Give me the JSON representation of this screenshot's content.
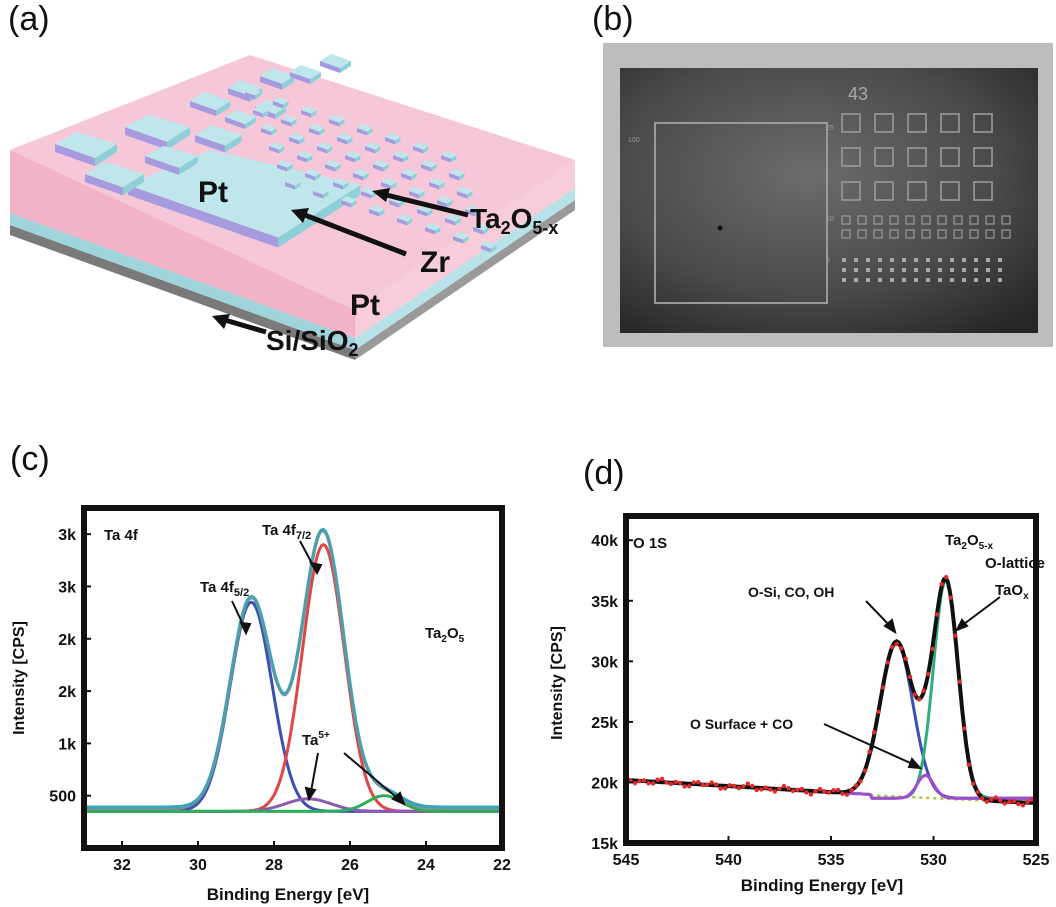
{
  "panels": {
    "a": {
      "label": "(a)"
    },
    "b": {
      "label": "(b)"
    },
    "c": {
      "label": "(c)"
    },
    "d": {
      "label": "(d)"
    }
  },
  "device": {
    "top_electrode": "Pt",
    "oxide_base": "Ta",
    "oxide_sub": "2",
    "oxide_mid": "O",
    "oxide_sub2": "5-x",
    "interlayer": "Zr",
    "bottom_electrode": "Pt",
    "substrate_base": "Si/SiO",
    "substrate_sub": "2",
    "colors": {
      "pink": "#f4bfd3",
      "cyan": "#bfe6ea",
      "purple": "#a79be0",
      "gray": "#8a8a8a"
    }
  },
  "micrograph": {
    "number_label": "43",
    "row_labels": [
      "100",
      "25",
      "10",
      "5"
    ]
  },
  "chart_data": [
    {
      "type": "line",
      "title": "Ta 4f",
      "xlabel": "Binding Energy [eV]",
      "ylabel": "Intensity [CPS]",
      "xlim": [
        33,
        22
      ],
      "ylim": [
        0,
        3250
      ],
      "x_ticks": [
        32,
        30,
        28,
        26,
        24,
        22
      ],
      "y_ticks": [
        500,
        1000,
        1500,
        2000,
        2500,
        3000
      ],
      "y_tick_labels": [
        "500",
        "1k",
        "2k",
        "2k",
        "3k",
        "3k"
      ],
      "series": [
        {
          "color": "#3aa6b9",
          "kind": "envelope"
        },
        {
          "color": "#3b4fb5",
          "kind": "component",
          "center": 28.6,
          "height": 2000,
          "width": 0.55
        },
        {
          "color": "#e04646",
          "kind": "component",
          "center": 26.7,
          "height": 2550,
          "width": 0.55
        },
        {
          "color": "#8e5ab5",
          "kind": "component",
          "center": 27.1,
          "height": 120,
          "width": 0.6
        },
        {
          "color": "#2fae5a",
          "kind": "component",
          "center": 25.1,
          "height": 150,
          "width": 0.45
        }
      ],
      "baseline": 350,
      "annotations": {
        "peak1_base": "Ta 4f",
        "peak1_sub": "5/2",
        "peak2_base": "Ta 4f",
        "peak2_sub": "7/2",
        "ion_base": "Ta",
        "ion_sup": "5+",
        "phase_base": "Ta",
        "phase_sub1": "2",
        "phase_mid": "O",
        "phase_sub2": "5"
      }
    },
    {
      "type": "line",
      "title": "O 1S",
      "xlabel": "Binding Energy [eV]",
      "ylabel": "Intensity [CPS]",
      "xlim": [
        545,
        525
      ],
      "ylim": [
        15000,
        42000
      ],
      "x_ticks": [
        545,
        540,
        535,
        530,
        525
      ],
      "y_ticks": [
        15000,
        20000,
        25000,
        30000,
        35000,
        40000
      ],
      "y_tick_labels": [
        "15k",
        "20k",
        "25k",
        "30k",
        "35k",
        "40k"
      ],
      "series": [
        {
          "color": "#e02b2b",
          "kind": "data"
        },
        {
          "color": "#111111",
          "kind": "fit"
        },
        {
          "color": "#3b4fb5",
          "kind": "component",
          "center": 531.8,
          "height": 12800,
          "width": 0.8
        },
        {
          "color": "#2fae7a",
          "kind": "component",
          "center": 529.4,
          "height": 18000,
          "width": 0.6
        },
        {
          "color": "#a24ad0",
          "kind": "component",
          "center": 530.4,
          "height": 1900,
          "width": 0.4
        },
        {
          "color": "#9acd32",
          "kind": "background"
        }
      ],
      "annotations": {
        "osi": "O-Si, CO, OH",
        "surface": "O Surface + CO",
        "phase_base": "Ta",
        "phase_sub1": "2",
        "phase_mid": "O",
        "phase_sub2": "5-x",
        "lattice": "O-lattice",
        "taox_base": "TaO",
        "taox_sub": "x"
      }
    }
  ]
}
